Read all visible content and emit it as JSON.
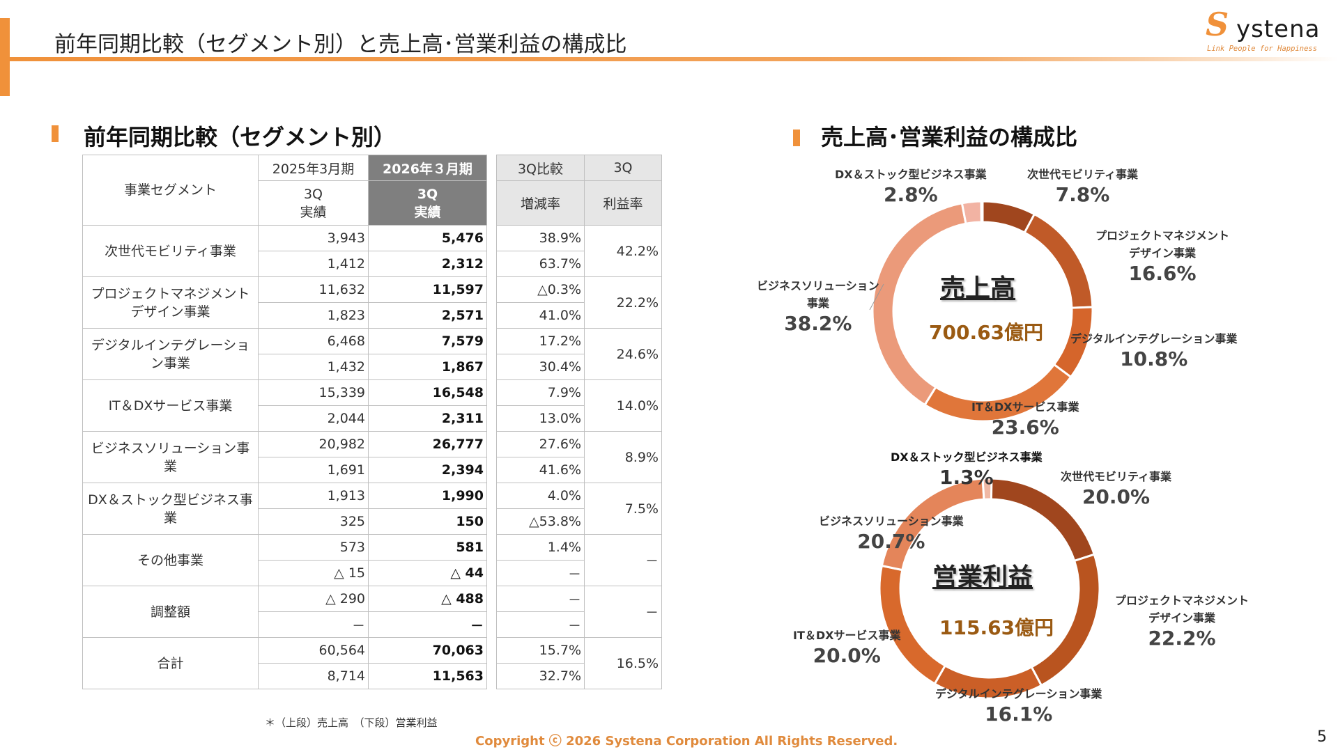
{
  "header": {
    "title": "前年同期比較（セグメント別）と売上高･営業利益の構成比",
    "logo_s": "S",
    "logo_word": "ystena",
    "logo_tagline": "Link People for Happiness"
  },
  "left_section": {
    "title": "前年同期比較（セグメント別）",
    "headers": {
      "segment": "事業セグメント",
      "prev_period": "2025年3月期",
      "cur_period": "2026年３月期",
      "cmp_label": "3Q比較",
      "q3_label": "3Q",
      "prev_sub": "3Q\n実績",
      "cur_sub": "3Q\n実績",
      "change": "増減率",
      "margin": "利益率"
    },
    "rows": [
      {
        "name": "次世代モビリティ事業",
        "prev": [
          "3,943",
          "1,412"
        ],
        "cur": [
          "5,476",
          "2,312"
        ],
        "chg": [
          "38.9%",
          "63.7%"
        ],
        "margin": "42.2%"
      },
      {
        "name": "プロジェクトマネジメント\nデザイン事業",
        "prev": [
          "11,632",
          "1,823"
        ],
        "cur": [
          "11,597",
          "2,571"
        ],
        "chg": [
          "△0.3%",
          "41.0%"
        ],
        "margin": "22.2%"
      },
      {
        "name": "デジタルインテグレーション事業",
        "prev": [
          "6,468",
          "1,432"
        ],
        "cur": [
          "7,579",
          "1,867"
        ],
        "chg": [
          "17.2%",
          "30.4%"
        ],
        "margin": "24.6%"
      },
      {
        "name": "IT＆DXサービス事業",
        "prev": [
          "15,339",
          "2,044"
        ],
        "cur": [
          "16,548",
          "2,311"
        ],
        "chg": [
          "7.9%",
          "13.0%"
        ],
        "margin": "14.0%"
      },
      {
        "name": "ビジネスソリューション事業",
        "prev": [
          "20,982",
          "1,691"
        ],
        "cur": [
          "26,777",
          "2,394"
        ],
        "chg": [
          "27.6%",
          "41.6%"
        ],
        "margin": "8.9%"
      },
      {
        "name": "DX＆ストック型ビジネス事業",
        "prev": [
          "1,913",
          "325"
        ],
        "cur": [
          "1,990",
          "150"
        ],
        "chg": [
          "4.0%",
          "△53.8%"
        ],
        "margin": "7.5%"
      },
      {
        "name": "その他事業",
        "prev": [
          "573",
          "△ 15"
        ],
        "cur": [
          "581",
          "△ 44"
        ],
        "chg": [
          "1.4%",
          "－"
        ],
        "margin": "－"
      },
      {
        "name": "調整額",
        "prev": [
          "△ 290",
          "－"
        ],
        "cur": [
          "△ 488",
          "－"
        ],
        "chg": [
          "－",
          "－"
        ],
        "margin": "－"
      },
      {
        "name": "合計",
        "prev": [
          "60,564",
          "8,714"
        ],
        "cur": [
          "70,063",
          "11,563"
        ],
        "chg": [
          "15.7%",
          "32.7%"
        ],
        "margin": "16.5%"
      }
    ],
    "footnote": "＊（上段）売上高　（下段）営業利益"
  },
  "right_section": {
    "title": "売上高･営業利益の構成比"
  },
  "chart_data": [
    {
      "type": "pie",
      "title": "売上高",
      "center_value": "700.63億円",
      "categories": [
        "次世代モビリティ事業",
        "プロジェクトマネジメントデザイン事業",
        "デジタルインテグレーション事業",
        "IT＆DXサービス事業",
        "ビジネスソリューション事業",
        "DX＆ストック型ビジネス事業"
      ],
      "values": [
        7.8,
        16.6,
        10.8,
        23.6,
        38.2,
        2.8
      ],
      "labels": [
        "7.8%",
        "16.6%",
        "10.8%",
        "23.6%",
        "38.2%",
        "2.8%"
      ],
      "colors": [
        "#a0461e",
        "#c05a28",
        "#d5652b",
        "#e0763a",
        "#eb9a7a",
        "#f2b3a3"
      ],
      "remainder_color": "#d0d0d0"
    },
    {
      "type": "pie",
      "title": "営業利益",
      "center_value": "115.63億円",
      "categories": [
        "次世代モビリティ事業",
        "プロジェクトマネジメントデザイン事業",
        "デジタルインテグレーション事業",
        "IT＆DXサービス事業",
        "ビジネスソリューション事業",
        "DX＆ストック型ビジネス事業"
      ],
      "values": [
        20.0,
        22.2,
        16.1,
        20.0,
        20.7,
        1.3
      ],
      "labels": [
        "20.0%",
        "22.2%",
        "16.1%",
        "20.0%",
        "20.7%",
        "1.3%"
      ],
      "colors": [
        "#a0461e",
        "#b9541f",
        "#cb5f27",
        "#d8692c",
        "#e4855a",
        "#f0b8a4"
      ],
      "remainder_color": "#d0d0d0"
    }
  ],
  "donut_label_names": {
    "sales": [
      "次世代モビリティ事業",
      "プロジェクトマネジメント\nデザイン事業",
      "デジタルインテグレーション事業",
      "IT＆DXサービス事業",
      "ビジネスソリューション\n事業",
      "DX＆ストック型ビジネス事業"
    ],
    "profit": [
      "次世代モビリティ事業",
      "プロジェクトマネジメント\nデザイン事業",
      "デジタルインテグレーション事業",
      "IT＆DXサービス事業",
      "ビジネスソリューション事業",
      "DX＆ストック型ビジネス事業"
    ]
  },
  "footer": {
    "copyright": "Copyright ⓒ 2026 Systena Corporation All Rights Reserved.",
    "page_number": "5"
  }
}
